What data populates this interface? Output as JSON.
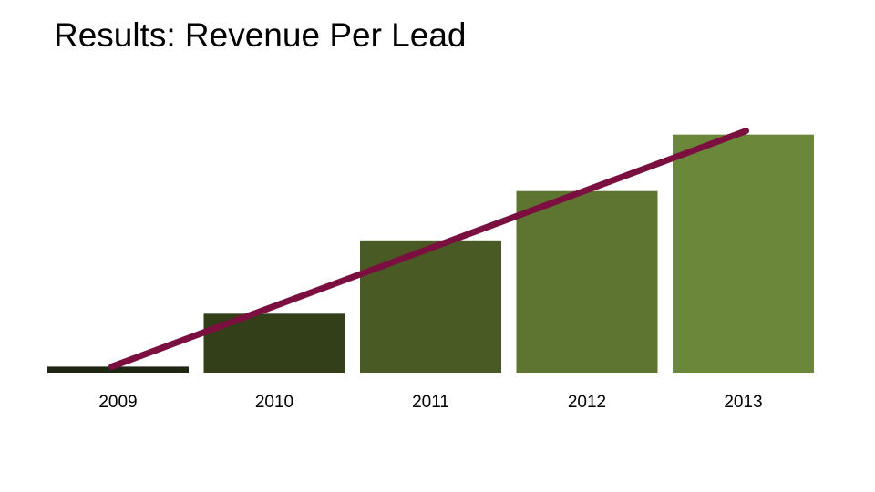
{
  "slide": {
    "title": "Results: Revenue Per Lead"
  },
  "chart_data": {
    "type": "bar",
    "title": "Results: Revenue Per Lead",
    "xlabel": "",
    "ylabel": "",
    "categories": [
      "2009",
      "2010",
      "2011",
      "2012",
      "2013"
    ],
    "series": [
      {
        "name": "Revenue Per Lead",
        "values": [
          2.5,
          24.5,
          55,
          75.5,
          99
        ],
        "colors": [
          "#1f2612",
          "#323f18",
          "#4a5a24",
          "#5e7532",
          "#6b873a"
        ]
      }
    ],
    "trendline": {
      "color": "#7b1040",
      "start": 2.5,
      "end": 100.5
    },
    "ylim": [
      0,
      100
    ],
    "grid": false,
    "legend": "none"
  }
}
